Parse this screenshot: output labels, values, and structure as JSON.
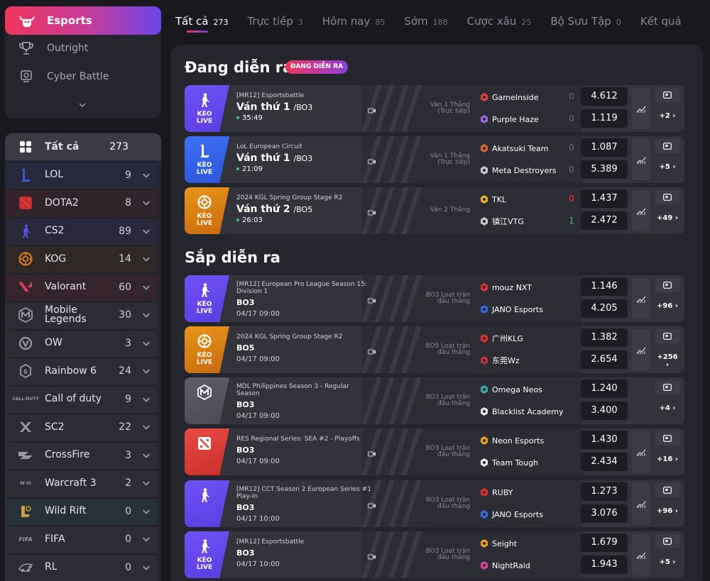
{
  "sidebar": {
    "top": {
      "active": {
        "label": "Esports",
        "icon": "bull-icon"
      },
      "links": [
        {
          "label": "Outright",
          "icon": "trophy-icon"
        },
        {
          "label": "Cyber Battle",
          "icon": "cyber-icon"
        }
      ]
    },
    "games": [
      {
        "label": "Tất cả",
        "count": "273",
        "icon": "grid-icon",
        "color": "#3b3b45"
      },
      {
        "label": "LOL",
        "count": "9",
        "icon": "lol-icon",
        "color": "#26293a"
      },
      {
        "label": "DOTA2",
        "count": "8",
        "icon": "dota2-icon",
        "color": "#32242b"
      },
      {
        "label": "CS2",
        "count": "89",
        "icon": "cs2-icon",
        "color": "#282838"
      },
      {
        "label": "KOG",
        "count": "14",
        "icon": "kog-icon",
        "color": "#302826"
      },
      {
        "label": "Valorant",
        "count": "60",
        "icon": "valorant-icon",
        "color": "#34242b"
      },
      {
        "label": "Mobile Legends",
        "count": "30",
        "icon": "mobile-legends-icon",
        "color": "#2c2c34"
      },
      {
        "label": "OW",
        "count": "3",
        "icon": "ow-icon",
        "color": "#2c2c34"
      },
      {
        "label": "Rainbow 6",
        "count": "24",
        "icon": "rainbow6-icon",
        "color": "#2c2c34"
      },
      {
        "label": "Call of duty",
        "count": "9",
        "icon": "cod-icon",
        "color": "#2c2c34"
      },
      {
        "label": "SC2",
        "count": "22",
        "icon": "sc2-icon",
        "color": "#2c2c34"
      },
      {
        "label": "CrossFire",
        "count": "3",
        "icon": "crossfire-icon",
        "color": "#2c2c34"
      },
      {
        "label": "Warcraft 3",
        "count": "2",
        "icon": "warcraft3-icon",
        "color": "#2c2c34"
      },
      {
        "label": "Wild Rift",
        "count": "0",
        "icon": "wildrift-icon",
        "color": "#283038"
      },
      {
        "label": "FIFA",
        "count": "0",
        "icon": "fifa-icon",
        "color": "#2c2c34"
      },
      {
        "label": "RL",
        "count": "0",
        "icon": "rl-icon",
        "color": "#2c2c34"
      }
    ]
  },
  "tabs": [
    {
      "label": "Tất cả",
      "count": "273",
      "active": true
    },
    {
      "label": "Trực tiếp",
      "count": "3"
    },
    {
      "label": "Hôm nay",
      "count": "85"
    },
    {
      "label": "Sớm",
      "count": "188"
    },
    {
      "label": "Cược xâu",
      "count": "25"
    },
    {
      "label": "Bộ Sưu Tập",
      "count": "0"
    },
    {
      "label": "Kết quả",
      "count": ""
    }
  ],
  "live": {
    "title": "Đang diễn ra",
    "badge": "ĐANG DIỄN RA"
  },
  "upcoming": {
    "title": "Sắp diễn ra"
  },
  "matches": [
    {
      "league": "[MR12] Esportsbattle",
      "round": "Ván thứ 1",
      "bo": "/BO3",
      "clock": "35:49",
      "date": "",
      "keo": "KÈO LIVE",
      "game": "cs2",
      "note": [
        "Ván 1 Thắng",
        "(Trực tiếp)"
      ],
      "t1": {
        "name": "GameInside",
        "score": "0",
        "odds": "4.612",
        "icon": "gameinside-icon"
      },
      "t2": {
        "name": "Purple Haze",
        "score": "0",
        "odds": "1.119",
        "icon": "purplehaze-icon"
      },
      "more": "+2 ›",
      "trend": true
    },
    {
      "league": "LoL European Circuit",
      "round": "Ván thứ 1",
      "bo": "/BO3",
      "clock": "21:09",
      "date": "",
      "keo": "KÈO LIVE",
      "game": "lol",
      "note": [
        "Ván 1 Thắng",
        "(Trực tiếp)"
      ],
      "t1": {
        "name": "Akatsuki Team",
        "score": "0",
        "odds": "1.087",
        "icon": "akatsuki-icon"
      },
      "t2": {
        "name": "Meta Destroyers",
        "score": "0",
        "odds": "5.389",
        "icon": "metadestroyers-icon"
      },
      "more": "+5 ›",
      "trend": true
    },
    {
      "league": "2024 KGL Spring Group Stage R2",
      "round": "Ván thứ 2",
      "bo": "/BO5",
      "clock": "26:03",
      "date": "",
      "keo": "KÈO LIVE",
      "game": "kog",
      "note": [
        "Ván 2 Thắng"
      ],
      "t1": {
        "name": "TKL",
        "score": "0",
        "odds": "1.437",
        "icon": "tkl-icon"
      },
      "t2": {
        "name": "镇江VTG",
        "score": "1",
        "odds": "2.472",
        "icon": "vtg-icon"
      },
      "more": "+49 ›",
      "trend": true
    },
    {
      "league": "[MR12] European Pro League Season 15: Division 1",
      "round": "BO3",
      "bo": "",
      "clock": "",
      "date": "04/17 09:00",
      "keo": "KÈO LIVE",
      "game": "cs2",
      "note": [
        "BO3 Loạt trận",
        "đấu thắng"
      ],
      "t1": {
        "name": "mouz NXT",
        "score": "",
        "odds": "1.146",
        "icon": "mouz-icon"
      },
      "t2": {
        "name": "JANO Esports",
        "score": "",
        "odds": "4.205",
        "icon": "jano-icon"
      },
      "more": "+96 ›",
      "trend": true
    },
    {
      "league": "2024 KGL Spring Group Stage R2",
      "round": "BO5",
      "bo": "",
      "clock": "",
      "date": "04/17 09:00",
      "keo": "KÈO LIVE",
      "game": "kog",
      "note": [
        "BO5 Loạt trận",
        "đấu thắng"
      ],
      "t1": {
        "name": "广州KLG",
        "score": "",
        "odds": "1.382",
        "icon": "klg-icon"
      },
      "t2": {
        "name": "东莞Wz",
        "score": "",
        "odds": "2.654",
        "icon": "wz-icon"
      },
      "more": "+256 ›",
      "trend": true
    },
    {
      "league": "MDL Philippines Season 3 - Regular Season",
      "round": "BO3",
      "bo": "",
      "clock": "",
      "date": "04/17 09:00",
      "keo": "",
      "game": "ml",
      "note": [
        "BO3 Loạt trận",
        "đấu thắng"
      ],
      "t1": {
        "name": "Omega Neos",
        "score": "",
        "odds": "1.240",
        "icon": "omega-icon"
      },
      "t2": {
        "name": "Blacklist Academy",
        "score": "",
        "odds": "3.400",
        "icon": "blacklist-icon"
      },
      "more": "+4 ›",
      "trend": false
    },
    {
      "league": "RES Regional Series: SEA #2 - Playoffs",
      "round": "BO3",
      "bo": "",
      "clock": "",
      "date": "04/17 09:00",
      "keo": "",
      "game": "dota",
      "note": [
        "BO3 Loạt trận",
        "đấu thắng"
      ],
      "t1": {
        "name": "Neon Esports",
        "score": "",
        "odds": "1.430",
        "icon": "neon-icon"
      },
      "t2": {
        "name": "Team Tough",
        "score": "",
        "odds": "2.434",
        "icon": "teamtough-icon"
      },
      "more": "+16 ›",
      "trend": true
    },
    {
      "league": "[MR12] CCT Season 2 European Series #1 Play-In",
      "round": "BO3",
      "bo": "",
      "clock": "",
      "date": "04/17 10:00",
      "keo": "",
      "game": "cs2",
      "note": [
        "BO3 Loạt trận",
        "đấu thắng"
      ],
      "t1": {
        "name": "RUBY",
        "score": "",
        "odds": "1.273",
        "icon": "ruby-icon"
      },
      "t2": {
        "name": "JANO Esports",
        "score": "",
        "odds": "3.076",
        "icon": "jano-icon"
      },
      "more": "+96 ›",
      "trend": true
    },
    {
      "league": "[MR12] Esportsbattle",
      "round": "BO3",
      "bo": "",
      "clock": "",
      "date": "04/17 10:00",
      "keo": "KÈO LIVE",
      "game": "cs2",
      "note": [
        "BO3 Loạt trận",
        "đấu thắng"
      ],
      "t1": {
        "name": "Seight",
        "score": "",
        "odds": "1.679",
        "icon": "seight-icon"
      },
      "t2": {
        "name": "NightRaid",
        "score": "",
        "odds": "1.943",
        "icon": "nightraid-icon"
      },
      "more": "+5 ›",
      "trend": true
    }
  ],
  "colors": {
    "accent_pink": "#f0365d",
    "accent_purple": "#6a45e8",
    "score_red": "#ff3b3b",
    "score_green": "#2ed17c",
    "cs2": "#6b4ff0",
    "lol": "#3a6cf2",
    "kog": "#e08a14",
    "ml": "#5a5a66",
    "dota": "#e2403f"
  }
}
